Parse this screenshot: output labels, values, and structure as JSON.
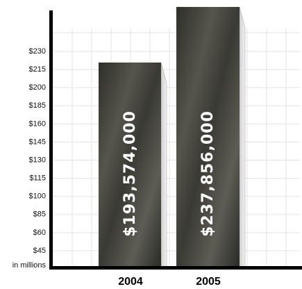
{
  "y_axis_labels": [
    "$230",
    "$215",
    "$200",
    "$185",
    "$160",
    "$145",
    "$130",
    "$115",
    "$100",
    "$85",
    "$60",
    "$45"
  ],
  "unit_note": "in millions",
  "bars": [
    {
      "year": "2004",
      "label": "$193,574,000"
    },
    {
      "year": "2005",
      "label": "$237,856,000"
    }
  ]
}
